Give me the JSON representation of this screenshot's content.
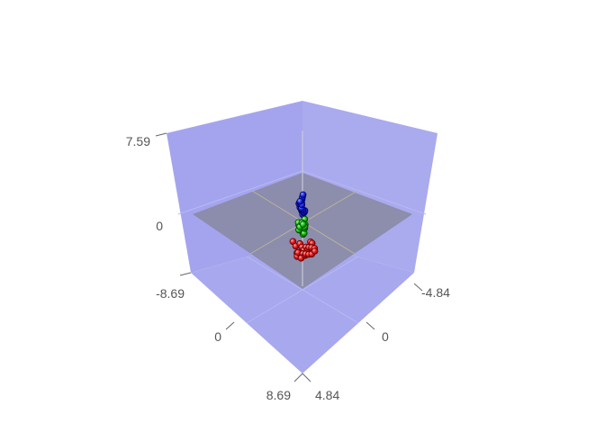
{
  "chart_data": {
    "type": "scatter3d",
    "title": "",
    "axes": {
      "z": {
        "label": "",
        "range": [
          -8.69,
          7.59
        ],
        "ticks": [
          {
            "value": 7.59,
            "label": "7.59"
          },
          {
            "value": 0,
            "label": "0"
          },
          {
            "value": -8.69,
            "label": "-8.69"
          }
        ]
      },
      "x": {
        "label": "",
        "range": [
          -8.69,
          8.69
        ],
        "ticks": [
          {
            "value": 8.69,
            "label": "8.69"
          },
          {
            "value": 0,
            "label": "0"
          }
        ]
      },
      "y": {
        "label": "",
        "range": [
          -4.84,
          4.84
        ],
        "ticks": [
          {
            "value": -4.84,
            "label": "-4.84"
          },
          {
            "value": 0,
            "label": "0"
          },
          {
            "value": 4.84,
            "label": "4.84"
          }
        ]
      }
    },
    "zero_plane": true,
    "legend": "none",
    "series": [
      {
        "color": "#0000cc",
        "points": [
          [
            0.45,
            0.15,
            2.1
          ],
          [
            0.75,
            0.35,
            2.5
          ],
          [
            1.05,
            0.55,
            2.9
          ],
          [
            1.35,
            0.75,
            3.2
          ],
          [
            1.6,
            0.95,
            3.5
          ],
          [
            0.25,
            0.05,
            1.7
          ],
          [
            0.55,
            0.25,
            1.9
          ],
          [
            0.95,
            0.45,
            2.2
          ],
          [
            1.25,
            0.65,
            2.6
          ],
          [
            0.35,
            0.3,
            1.5
          ],
          [
            0.65,
            0.2,
            2.3
          ],
          [
            0.15,
            0.1,
            1.3
          ],
          [
            0.85,
            0.5,
            2.0
          ],
          [
            0.5,
            0.45,
            1.6
          ],
          [
            1.15,
            0.4,
            2.8
          ],
          [
            0.3,
            -0.05,
            2.0
          ],
          [
            1.45,
            0.6,
            3.0
          ],
          [
            0.7,
            0.6,
            1.8
          ],
          [
            0.05,
            0.0,
            1.5
          ],
          [
            0.9,
            0.2,
            2.6
          ]
        ]
      },
      {
        "color": "#00aa00",
        "points": [
          [
            0.35,
            0.05,
            0.3
          ],
          [
            0.6,
            0.2,
            0.6
          ],
          [
            0.85,
            0.4,
            0.9
          ],
          [
            1.05,
            0.55,
            1.1
          ],
          [
            0.15,
            -0.05,
            0.1
          ],
          [
            0.45,
            0.3,
            0.2
          ],
          [
            0.75,
            0.1,
            0.5
          ],
          [
            0.95,
            0.3,
            0.8
          ],
          [
            0.25,
            0.2,
            -0.2
          ],
          [
            0.55,
            0.45,
            0.0
          ],
          [
            1.15,
            0.7,
            1.0
          ],
          [
            0.65,
            0.55,
            0.4
          ],
          [
            0.05,
            0.1,
            0.4
          ],
          [
            0.4,
            -0.1,
            0.7
          ],
          [
            0.8,
            0.65,
            0.6
          ],
          [
            0.3,
            0.4,
            0.5
          ],
          [
            1.0,
            0.2,
            1.2
          ],
          [
            0.2,
            0.3,
            0.9
          ]
        ]
      },
      {
        "color": "#cc0000",
        "points": [
          [
            4.05,
            1.8,
            0.3
          ],
          [
            4.1,
            2.1,
            0.2
          ],
          [
            4.2,
            2.4,
            0.15
          ],
          [
            4.3,
            2.7,
            0.1
          ],
          [
            4.35,
            3.0,
            0.0
          ],
          [
            4.4,
            3.3,
            -0.05
          ],
          [
            4.05,
            2.6,
            0.5
          ],
          [
            4.15,
            2.9,
            0.45
          ],
          [
            4.25,
            3.2,
            0.4
          ],
          [
            4.0,
            2.2,
            0.6
          ],
          [
            4.2,
            1.9,
            0.1
          ],
          [
            4.3,
            2.3,
            -0.1
          ],
          [
            4.1,
            2.8,
            0.3
          ],
          [
            4.25,
            2.0,
            0.4
          ],
          [
            4.15,
            3.4,
            0.2
          ],
          [
            3.9,
            1.6,
            0.8
          ],
          [
            4.3,
            3.5,
            0.05
          ],
          [
            4.05,
            2.4,
            0.35
          ],
          [
            3.9,
            2.9,
            0.7
          ],
          [
            4.2,
            2.6,
            -0.05
          ],
          [
            3.8,
            1.3,
            1.2
          ],
          [
            3.95,
            2.0,
            0.9
          ],
          [
            4.0,
            3.1,
            0.6
          ]
        ]
      }
    ]
  }
}
